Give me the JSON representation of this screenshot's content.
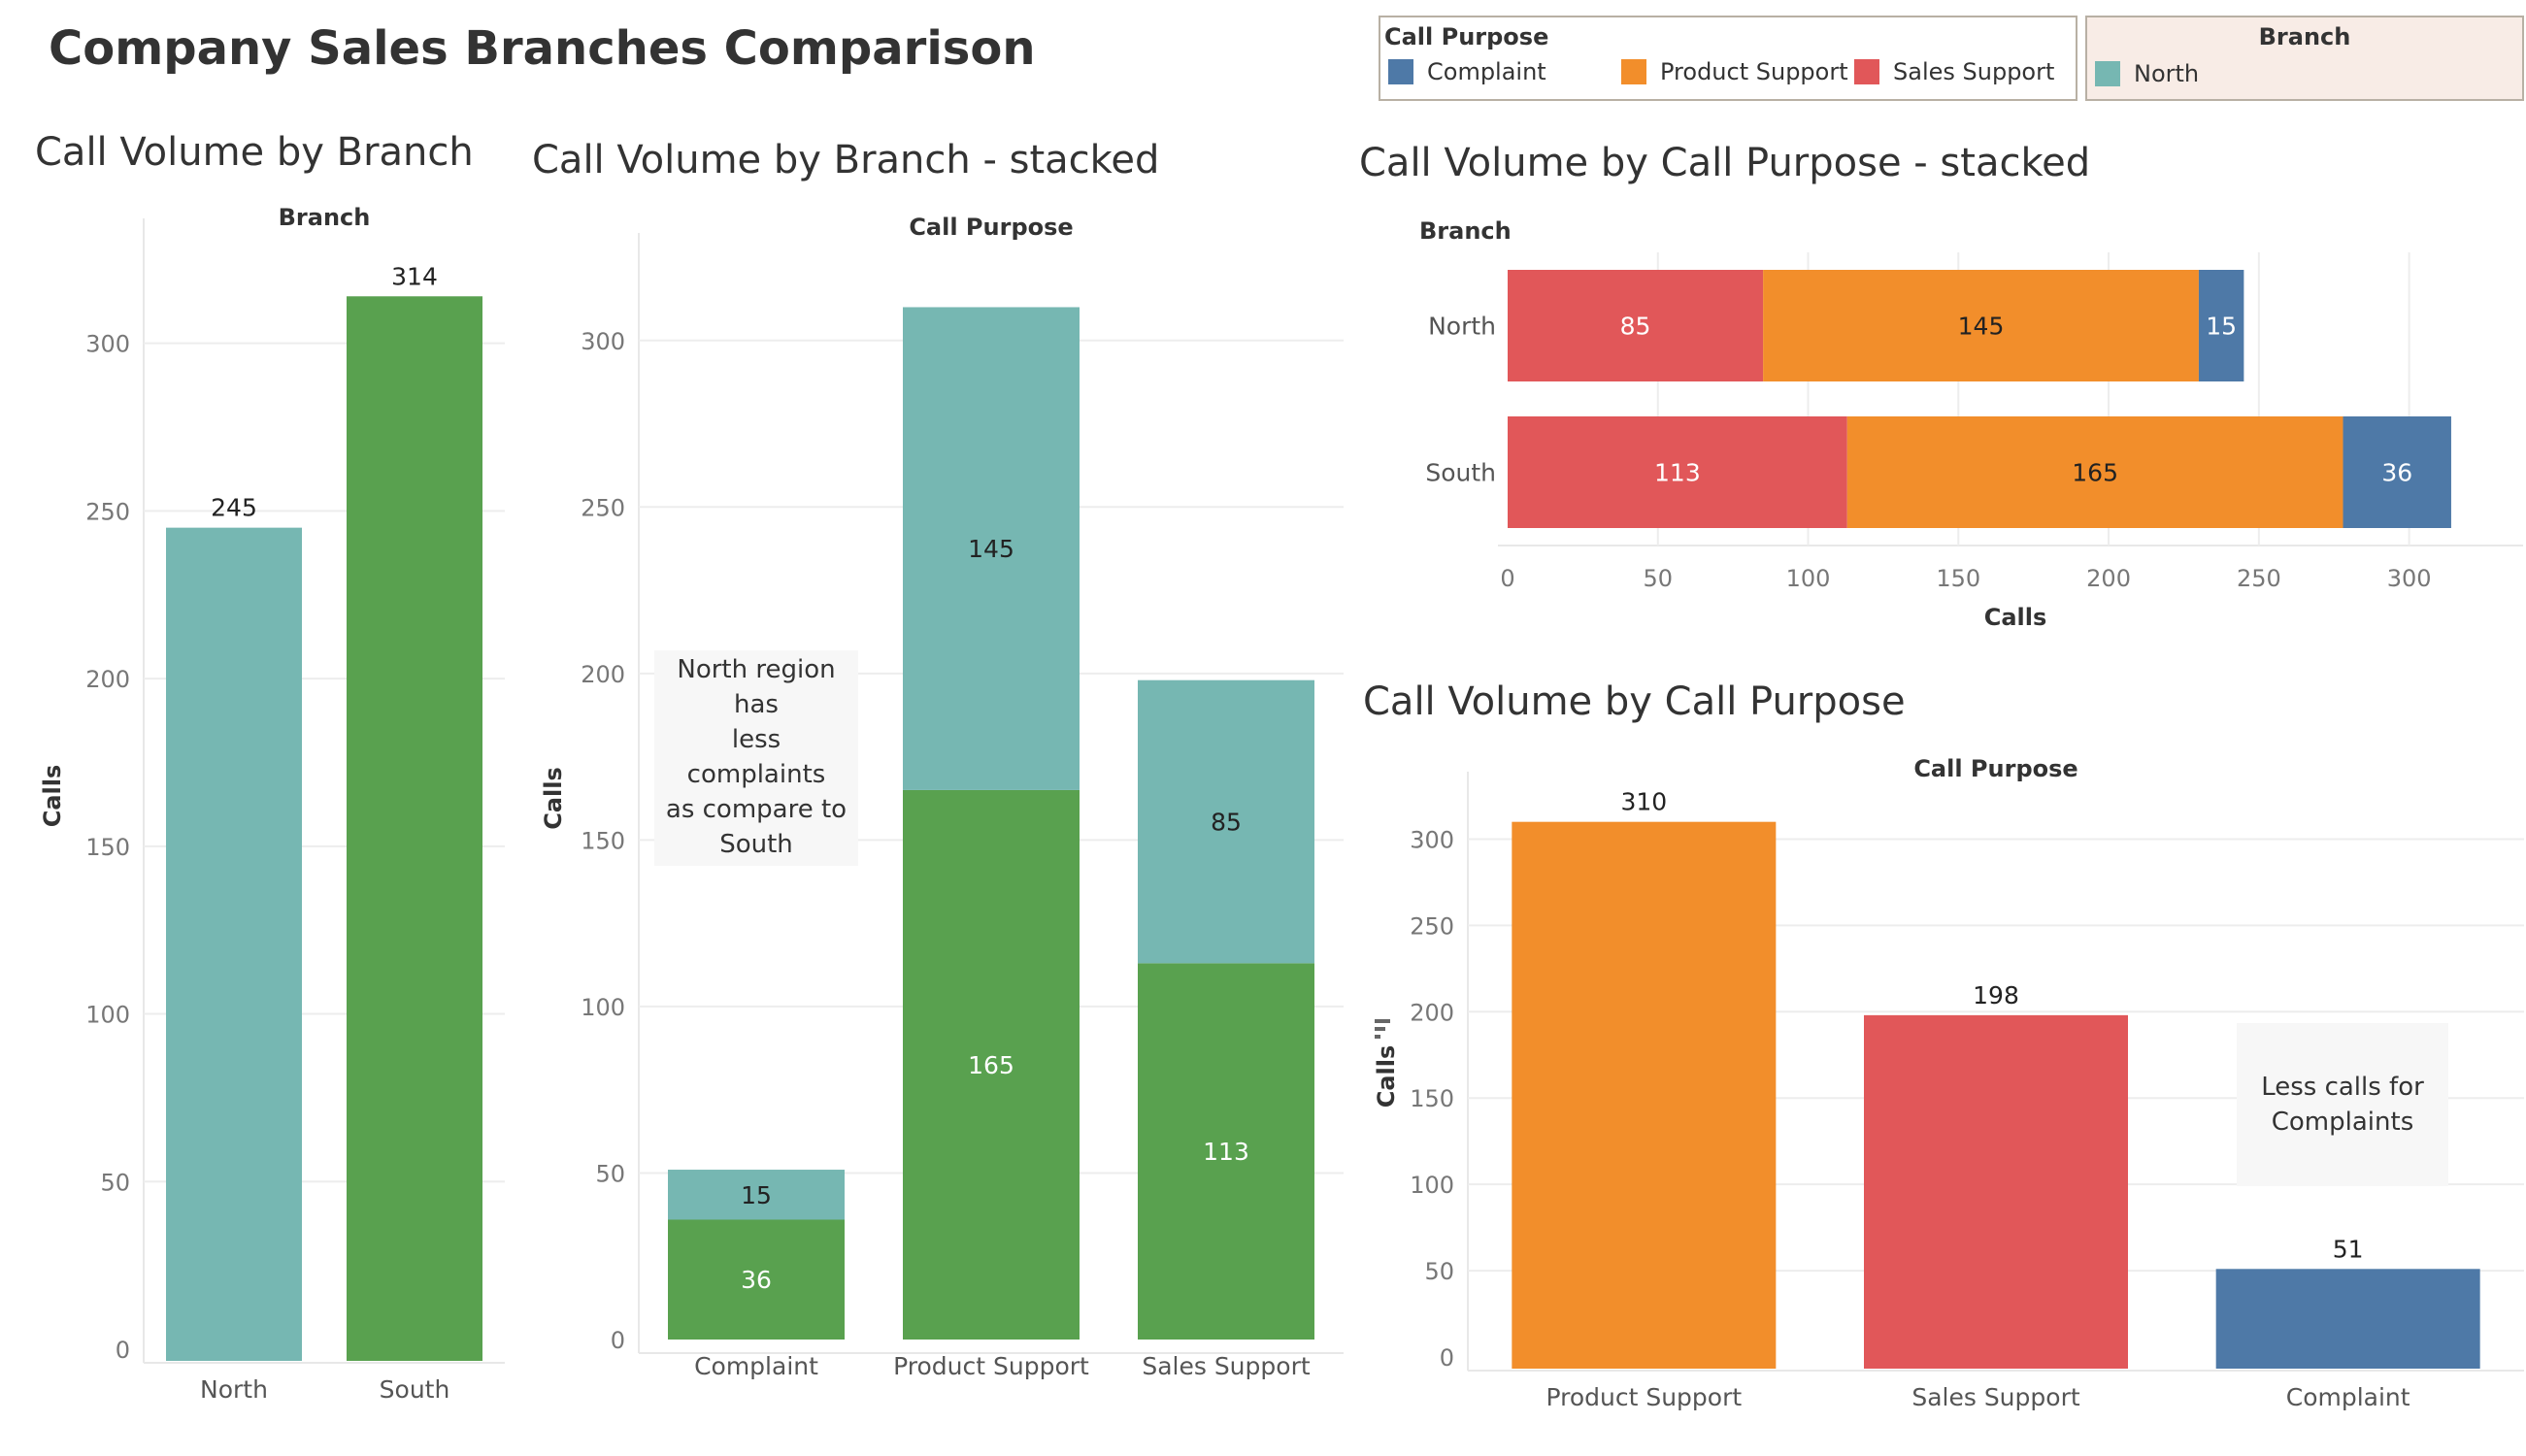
{
  "dashboard": {
    "title": "Company Sales Branches Comparison"
  },
  "colors": {
    "north": "#76B7B2",
    "south": "#59A14F",
    "complaint": "#4E79A7",
    "product_support": "#F28E2B",
    "sales_support": "#E15759"
  },
  "legends": {
    "call_purpose": {
      "title": "Call Purpose",
      "items": [
        {
          "label": "Complaint",
          "color": "#4E79A7"
        },
        {
          "label": "Product Support",
          "color": "#F28E2B"
        },
        {
          "label": "Sales Support",
          "color": "#E15759"
        }
      ]
    },
    "branch": {
      "title": "Branch",
      "items": [
        {
          "label": "North",
          "color": "#76B7B2"
        }
      ]
    }
  },
  "sheets": {
    "by_branch": {
      "title": "Call Volume by Branch"
    },
    "by_branch_stacked": {
      "title": "Call Volume by Branch - stacked",
      "annotation": [
        "North region",
        "has",
        "less",
        "complaints",
        "as compare to",
        "South"
      ]
    },
    "by_purpose_stacked": {
      "title": "Call Volume by Call Purpose - stacked"
    },
    "by_purpose": {
      "title": "Call Volume by Call Purpose",
      "annotation": [
        "Less calls for",
        "Complaints"
      ]
    }
  },
  "chart_data": [
    {
      "type": "bar",
      "title": "Call Volume by Branch",
      "header": "Branch",
      "categories": [
        "North",
        "South"
      ],
      "values": [
        245,
        314
      ],
      "colors": [
        "#76B7B2",
        "#59A14F"
      ],
      "ylabel": "Calls",
      "ylim": [
        0,
        330
      ],
      "yticks": [
        0,
        50,
        100,
        150,
        200,
        250,
        300
      ],
      "grid": true
    },
    {
      "type": "bar",
      "stacked": true,
      "title": "Call Volume by Branch - stacked",
      "header": "Call Purpose",
      "categories": [
        "Complaint",
        "Product Support",
        "Sales Support"
      ],
      "series": [
        {
          "values": [
            36,
            165,
            113
          ],
          "color": "#59A14F"
        },
        {
          "values": [
            15,
            145,
            85
          ],
          "color": "#76B7B2"
        }
      ],
      "ylabel": "Calls",
      "ylim": [
        0,
        325
      ],
      "yticks": [
        0,
        50,
        100,
        150,
        200,
        250,
        300
      ],
      "grid": true
    },
    {
      "type": "bar",
      "orientation": "horizontal",
      "stacked": true,
      "title": "Call Volume by Call Purpose - stacked",
      "header": "Branch",
      "categories": [
        "North",
        "South"
      ],
      "series": [
        {
          "name": "Sales Support",
          "values": [
            85,
            113
          ],
          "color": "#E15759"
        },
        {
          "name": "Product Support",
          "values": [
            145,
            165
          ],
          "color": "#F28E2B"
        },
        {
          "name": "Complaint",
          "values": [
            15,
            36
          ],
          "color": "#4E79A7"
        }
      ],
      "xlabel": "Calls",
      "xlim": [
        0,
        325
      ],
      "xticks": [
        0,
        50,
        100,
        150,
        200,
        250,
        300
      ],
      "grid": true
    },
    {
      "type": "bar",
      "title": "Call Volume by Call Purpose",
      "header": "Call Purpose",
      "categories": [
        "Product Support",
        "Sales Support",
        "Complaint"
      ],
      "values": [
        310,
        198,
        51
      ],
      "colors": [
        "#F28E2B",
        "#E15759",
        "#4E79A7"
      ],
      "ylabel": "Calls",
      "ylim": [
        0,
        325
      ],
      "yticks": [
        0,
        50,
        100,
        150,
        200,
        250,
        300
      ],
      "grid": true
    }
  ]
}
